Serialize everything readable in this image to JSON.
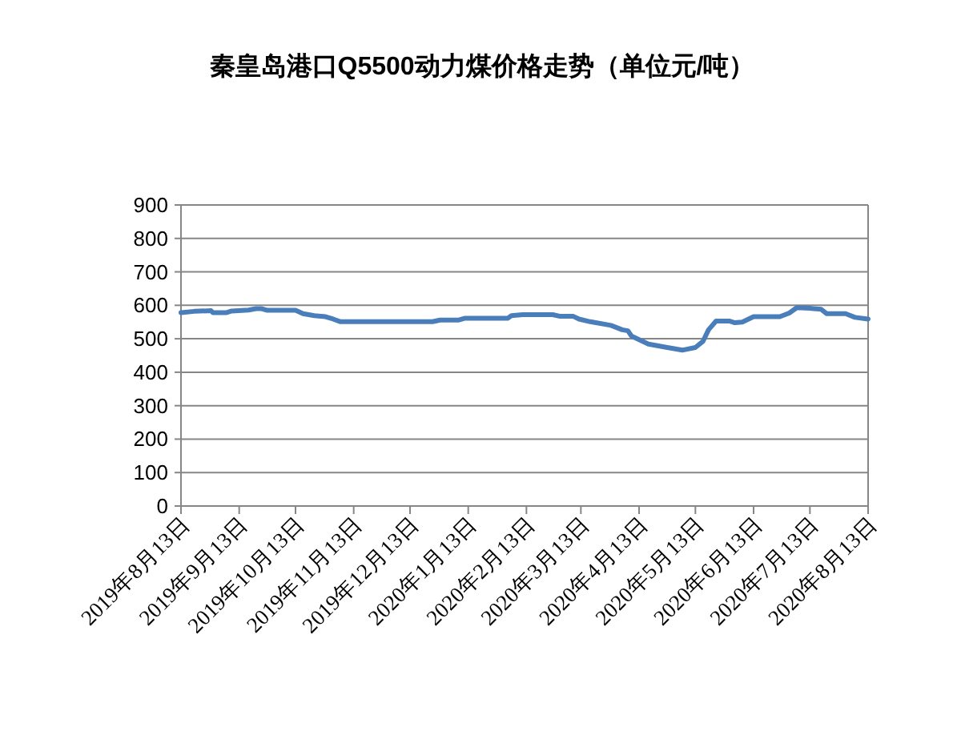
{
  "chart_data": {
    "type": "line",
    "title": "秦皇岛港口Q5500动力煤价格走势（单位元/吨）",
    "x": [
      "2019-08-13",
      "2019-08-20",
      "2019-08-29",
      "2019-08-30",
      "2019-09-06",
      "2019-09-09",
      "2019-09-18",
      "2019-09-22",
      "2019-09-25",
      "2019-09-28",
      "2019-10-13",
      "2019-10-17",
      "2019-10-23",
      "2019-10-29",
      "2019-11-02",
      "2019-11-06",
      "2019-12-25",
      "2019-12-29",
      "2020-01-08",
      "2020-01-11",
      "2020-02-03",
      "2020-02-05",
      "2020-02-11",
      "2020-02-27",
      "2020-03-02",
      "2020-03-09",
      "2020-03-12",
      "2020-03-18",
      "2020-03-29",
      "2020-04-04",
      "2020-04-07",
      "2020-04-09",
      "2020-04-18",
      "2020-04-28",
      "2020-05-06",
      "2020-05-13",
      "2020-05-17",
      "2020-05-20",
      "2020-05-24",
      "2020-05-31",
      "2020-06-03",
      "2020-06-07",
      "2020-06-13",
      "2020-06-27",
      "2020-07-02",
      "2020-07-06",
      "2020-07-13",
      "2020-07-19",
      "2020-07-22",
      "2020-08-01",
      "2020-08-06",
      "2020-08-13"
    ],
    "series": [
      {
        "color": "#4a7ebb",
        "values": [
          578,
          582,
          584,
          578,
          578,
          583,
          586,
          590,
          590,
          585,
          585,
          575,
          569,
          566,
          559,
          551,
          551,
          556,
          556,
          561,
          561,
          569,
          572,
          572,
          567,
          567,
          559,
          551,
          540,
          527,
          524,
          508,
          484,
          474,
          466,
          474,
          492,
          527,
          553,
          553,
          548,
          550,
          566,
          566,
          577,
          593,
          591,
          588,
          575,
          575,
          564,
          559
        ]
      }
    ],
    "xlim": [
      "2019-08-13",
      "2020-08-13"
    ],
    "xticks": [
      {
        "value": "2019-08-13",
        "label": "2019年8月13日"
      },
      {
        "value": "2019-09-13",
        "label": "2019年9月13日"
      },
      {
        "value": "2019-10-13",
        "label": "2019年10月13日"
      },
      {
        "value": "2019-11-13",
        "label": "2019年11月13日"
      },
      {
        "value": "2019-12-13",
        "label": "2019年12月13日"
      },
      {
        "value": "2020-01-13",
        "label": "2020年1月13日"
      },
      {
        "value": "2020-02-13",
        "label": "2020年2月13日"
      },
      {
        "value": "2020-03-13",
        "label": "2020年3月13日"
      },
      {
        "value": "2020-04-13",
        "label": "2020年4月13日"
      },
      {
        "value": "2020-05-13",
        "label": "2020年5月13日"
      },
      {
        "value": "2020-06-13",
        "label": "2020年6月13日"
      },
      {
        "value": "2020-07-13",
        "label": "2020年7月13日"
      },
      {
        "value": "2020-08-13",
        "label": "2020年8月13日"
      }
    ],
    "ylim": [
      0,
      900
    ],
    "yticks": [
      0,
      100,
      200,
      300,
      400,
      500,
      600,
      700,
      800,
      900
    ],
    "grid": "y",
    "line_style": "solid"
  }
}
